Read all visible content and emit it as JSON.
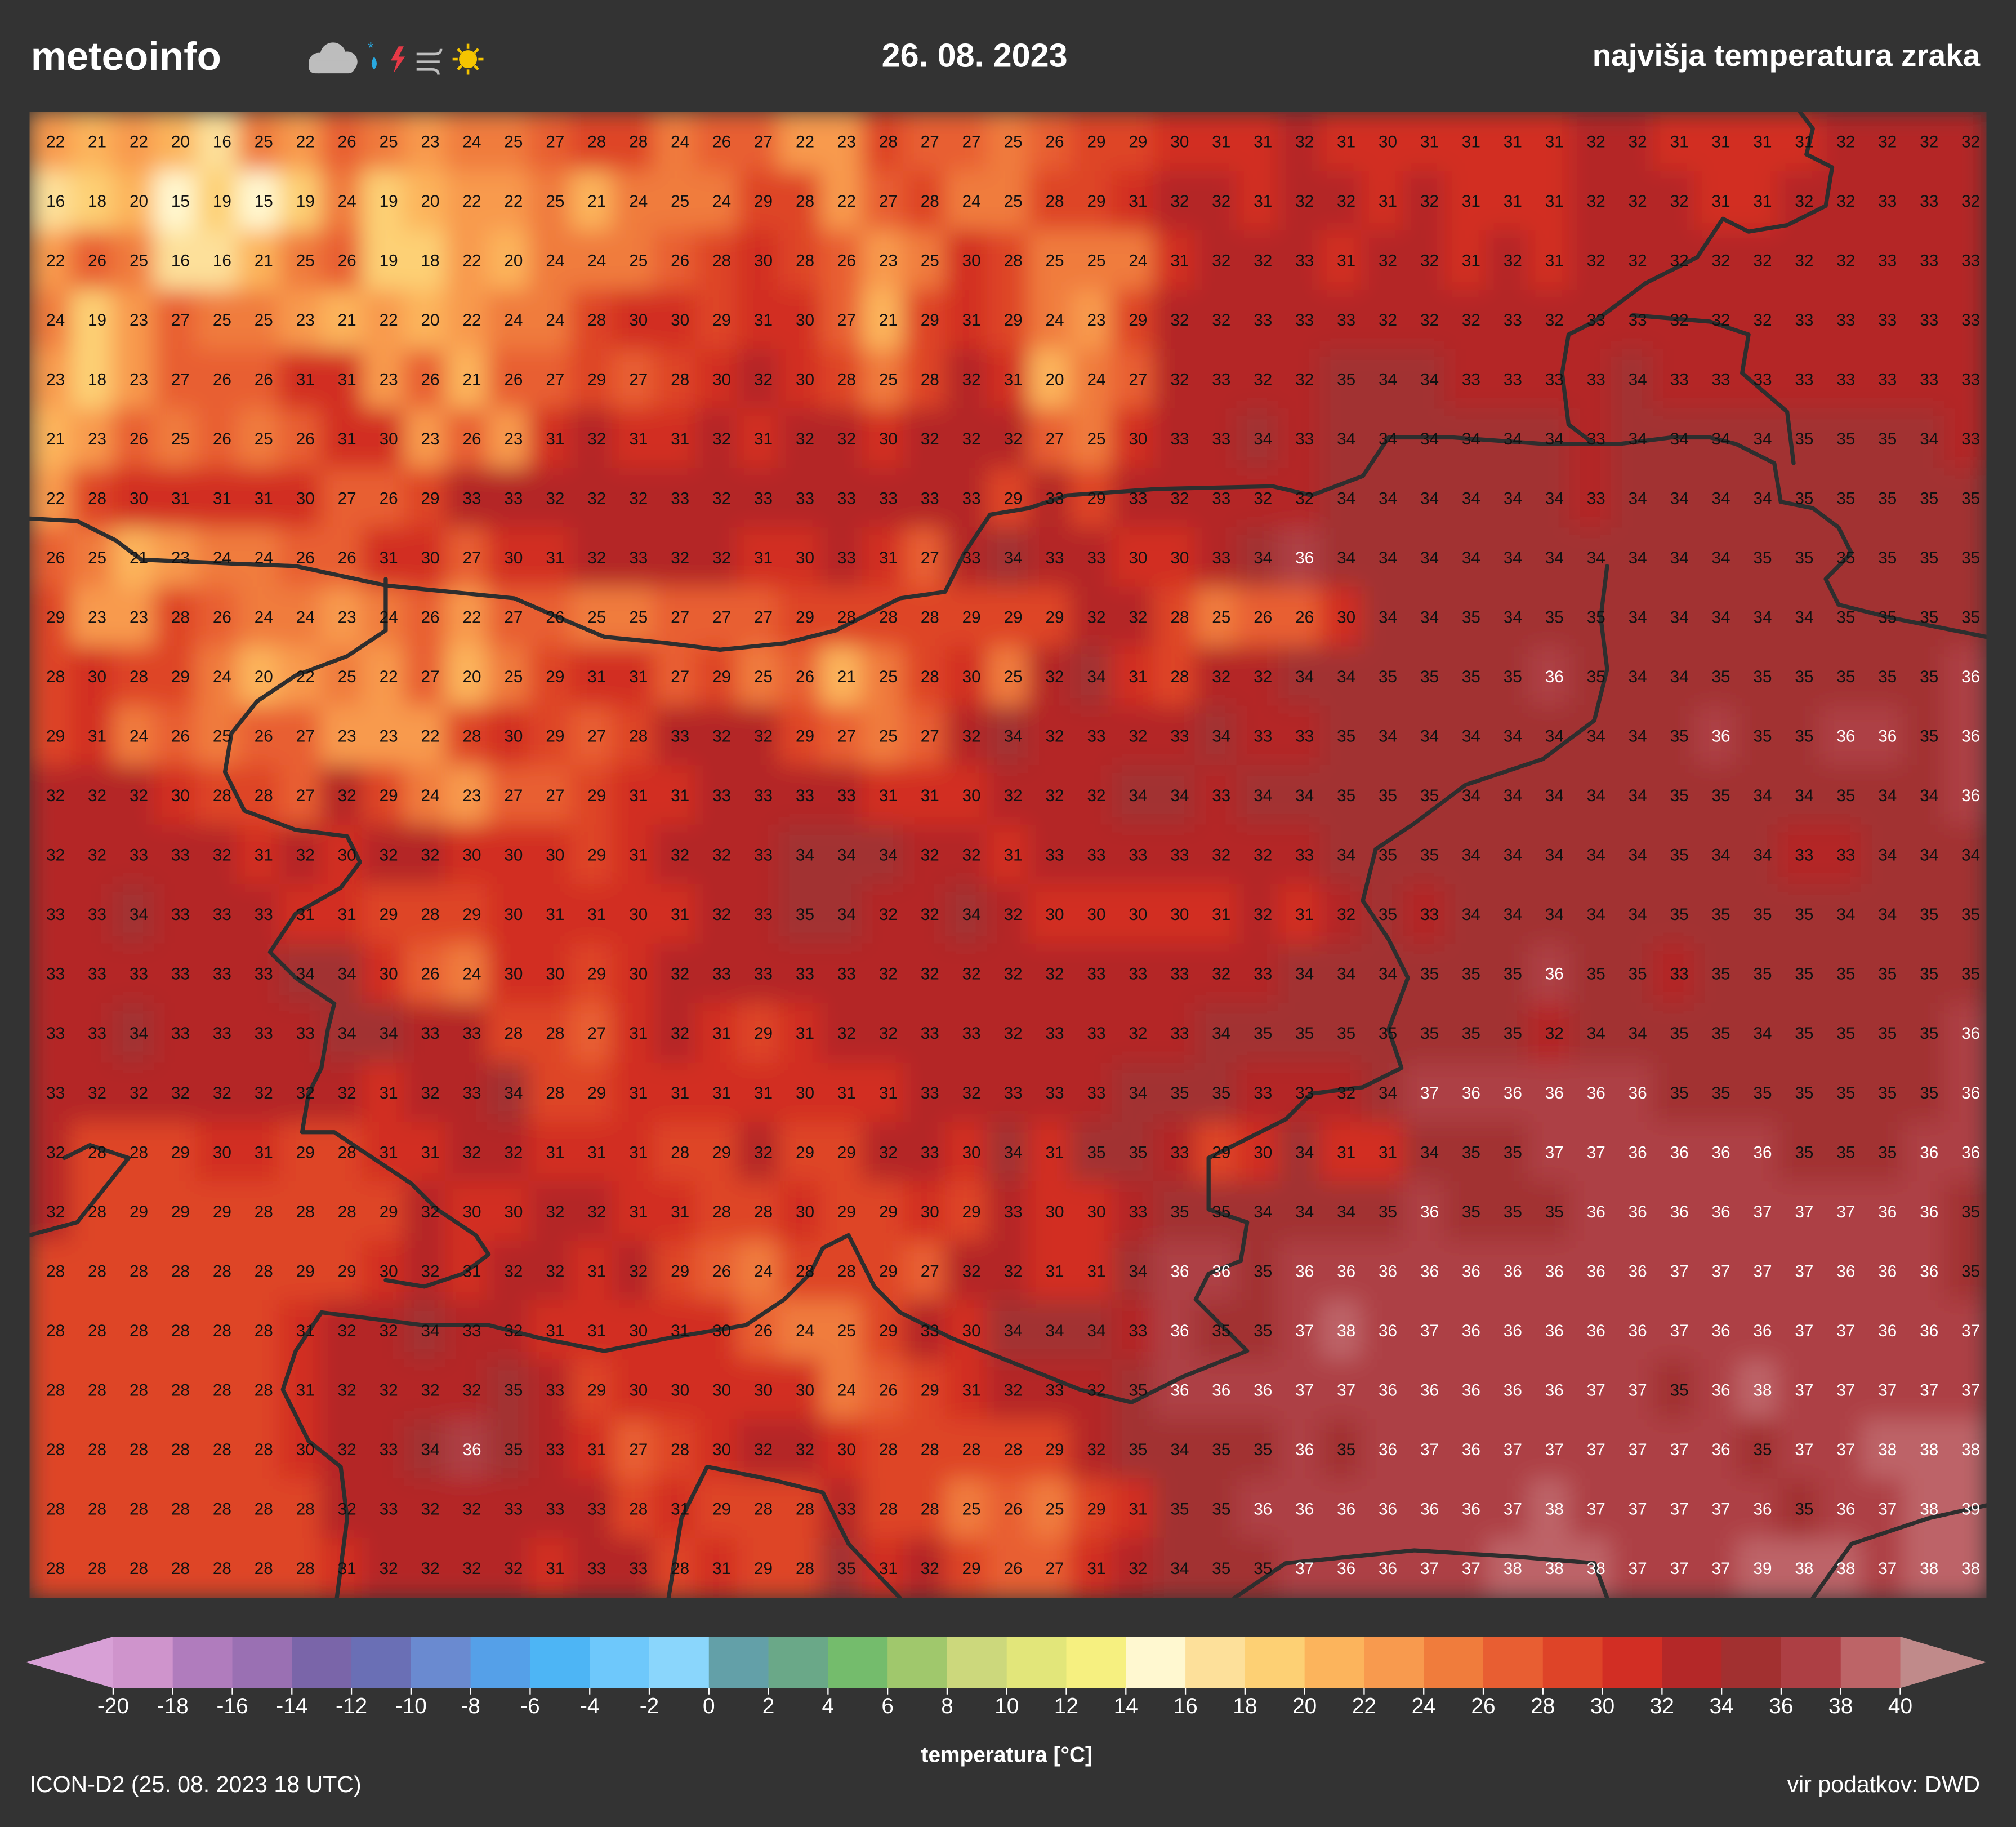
{
  "header": {
    "logo": "meteoinfo",
    "date": "26. 08. 2023",
    "title": "najvišja temperatura zraka"
  },
  "map": {
    "grid": [
      [
        22,
        21,
        22,
        20,
        16,
        25,
        22,
        26,
        25,
        23,
        24,
        25,
        27,
        28,
        28,
        24,
        26,
        27,
        22,
        23,
        28,
        27,
        27,
        25,
        26,
        29,
        29,
        30,
        31,
        31,
        32,
        31,
        30,
        31,
        31,
        31,
        31,
        32,
        32,
        31,
        31,
        31,
        31,
        32,
        32,
        32,
        32
      ],
      [
        16,
        18,
        20,
        15,
        19,
        15,
        19,
        24,
        19,
        20,
        22,
        22,
        25,
        21,
        24,
        25,
        24,
        29,
        28,
        22,
        27,
        28,
        24,
        25,
        28,
        29,
        31,
        32,
        32,
        31,
        32,
        32,
        31,
        32,
        31,
        31,
        31,
        32,
        32,
        32,
        31,
        31,
        32,
        32,
        33,
        33,
        32
      ],
      [
        22,
        26,
        25,
        16,
        16,
        21,
        25,
        26,
        19,
        18,
        22,
        20,
        24,
        24,
        25,
        26,
        28,
        30,
        28,
        26,
        23,
        25,
        30,
        28,
        25,
        25,
        24,
        31,
        32,
        32,
        33,
        31,
        32,
        32,
        31,
        32,
        31,
        32,
        32,
        32,
        32,
        32,
        32,
        32,
        33,
        33,
        33
      ],
      [
        24,
        19,
        23,
        27,
        25,
        25,
        23,
        21,
        22,
        20,
        22,
        24,
        24,
        28,
        30,
        30,
        29,
        31,
        30,
        27,
        21,
        29,
        31,
        29,
        24,
        23,
        29,
        32,
        32,
        33,
        33,
        33,
        32,
        32,
        32,
        33,
        32,
        33,
        33,
        32,
        32,
        32,
        33,
        33,
        33,
        33,
        33
      ],
      [
        23,
        18,
        23,
        27,
        26,
        26,
        31,
        31,
        23,
        26,
        21,
        26,
        27,
        29,
        27,
        28,
        30,
        32,
        30,
        28,
        25,
        28,
        32,
        31,
        20,
        24,
        27,
        32,
        33,
        32,
        32,
        35,
        34,
        34,
        33,
        33,
        33,
        33,
        34,
        33,
        33,
        33,
        33,
        33,
        33,
        33,
        33
      ],
      [
        21,
        23,
        26,
        25,
        26,
        25,
        26,
        31,
        30,
        23,
        26,
        23,
        31,
        32,
        31,
        31,
        32,
        31,
        32,
        32,
        30,
        32,
        32,
        32,
        27,
        25,
        30,
        33,
        33,
        34,
        33,
        34,
        34,
        34,
        34,
        34,
        34,
        33,
        34,
        34,
        34,
        34,
        35,
        35,
        35,
        34,
        33
      ],
      [
        22,
        28,
        30,
        31,
        31,
        31,
        30,
        27,
        26,
        29,
        33,
        33,
        32,
        32,
        32,
        33,
        32,
        33,
        33,
        33,
        33,
        33,
        33,
        29,
        33,
        29,
        33,
        32,
        33,
        32,
        32,
        34,
        34,
        34,
        34,
        34,
        34,
        33,
        34,
        34,
        34,
        34,
        35,
        35,
        35,
        35,
        35
      ],
      [
        26,
        25,
        21,
        23,
        24,
        24,
        26,
        26,
        31,
        30,
        27,
        30,
        31,
        32,
        33,
        32,
        32,
        31,
        30,
        33,
        31,
        27,
        33,
        34,
        33,
        33,
        30,
        30,
        33,
        34,
        36,
        34,
        34,
        34,
        34,
        34,
        34,
        34,
        34,
        34,
        34,
        35,
        35,
        35,
        35,
        35,
        35
      ],
      [
        29,
        23,
        23,
        28,
        26,
        24,
        24,
        23,
        24,
        26,
        22,
        27,
        26,
        25,
        25,
        27,
        27,
        27,
        29,
        28,
        28,
        28,
        29,
        29,
        29,
        32,
        32,
        28,
        25,
        26,
        26,
        30,
        34,
        34,
        35,
        34,
        35,
        35,
        34,
        34,
        34,
        34,
        34,
        35,
        35,
        35,
        35
      ],
      [
        28,
        30,
        28,
        29,
        24,
        20,
        22,
        25,
        22,
        27,
        20,
        25,
        29,
        31,
        31,
        27,
        29,
        25,
        26,
        21,
        25,
        28,
        30,
        25,
        32,
        34,
        31,
        28,
        32,
        32,
        34,
        34,
        35,
        35,
        35,
        35,
        36,
        35,
        34,
        34,
        35,
        35,
        35,
        35,
        35,
        35,
        36
      ],
      [
        29,
        31,
        24,
        26,
        25,
        26,
        27,
        23,
        23,
        22,
        28,
        30,
        29,
        27,
        28,
        33,
        32,
        32,
        29,
        27,
        25,
        27,
        32,
        34,
        32,
        33,
        32,
        33,
        34,
        33,
        33,
        35,
        34,
        34,
        34,
        34,
        34,
        34,
        34,
        35,
        36,
        35,
        35,
        36,
        36,
        35,
        36
      ],
      [
        32,
        32,
        32,
        30,
        28,
        28,
        27,
        32,
        29,
        24,
        23,
        27,
        27,
        29,
        31,
        31,
        33,
        33,
        33,
        33,
        31,
        31,
        30,
        32,
        32,
        32,
        34,
        34,
        33,
        34,
        34,
        35,
        35,
        35,
        34,
        34,
        34,
        34,
        34,
        35,
        35,
        34,
        34,
        35,
        34,
        34,
        36
      ],
      [
        32,
        32,
        33,
        33,
        32,
        31,
        32,
        30,
        32,
        32,
        30,
        30,
        30,
        29,
        31,
        32,
        32,
        33,
        34,
        34,
        34,
        32,
        32,
        31,
        33,
        33,
        33,
        33,
        32,
        32,
        33,
        34,
        35,
        35,
        34,
        34,
        34,
        34,
        34,
        35,
        34,
        34,
        33,
        33,
        34,
        34,
        34
      ],
      [
        33,
        33,
        34,
        33,
        33,
        33,
        31,
        31,
        29,
        28,
        29,
        30,
        31,
        31,
        30,
        31,
        32,
        33,
        35,
        34,
        32,
        32,
        34,
        32,
        30,
        30,
        30,
        30,
        31,
        32,
        31,
        32,
        35,
        33,
        34,
        34,
        34,
        34,
        34,
        35,
        35,
        35,
        35,
        34,
        34,
        35,
        35
      ],
      [
        33,
        33,
        33,
        33,
        33,
        33,
        34,
        34,
        30,
        26,
        24,
        30,
        30,
        29,
        30,
        32,
        33,
        33,
        33,
        33,
        32,
        32,
        32,
        32,
        32,
        33,
        33,
        33,
        32,
        33,
        34,
        34,
        34,
        35,
        35,
        35,
        36,
        35,
        35,
        33,
        35,
        35,
        35,
        35,
        35,
        35,
        35
      ],
      [
        33,
        33,
        34,
        33,
        33,
        33,
        33,
        34,
        34,
        33,
        33,
        28,
        28,
        27,
        31,
        32,
        31,
        29,
        31,
        32,
        32,
        33,
        33,
        32,
        33,
        33,
        32,
        33,
        34,
        35,
        35,
        35,
        35,
        35,
        35,
        35,
        32,
        34,
        34,
        35,
        35,
        34,
        35,
        35,
        35,
        35,
        36
      ],
      [
        33,
        32,
        32,
        32,
        32,
        32,
        32,
        32,
        31,
        32,
        33,
        34,
        28,
        29,
        31,
        31,
        31,
        31,
        30,
        31,
        31,
        33,
        32,
        33,
        33,
        33,
        34,
        35,
        35,
        33,
        33,
        32,
        34,
        37,
        36,
        36,
        36,
        36,
        36,
        35,
        35,
        35,
        35,
        35,
        35,
        35,
        36
      ],
      [
        32,
        28,
        28,
        29,
        30,
        31,
        29,
        28,
        31,
        31,
        32,
        32,
        31,
        31,
        31,
        28,
        29,
        32,
        29,
        29,
        32,
        33,
        30,
        34,
        31,
        35,
        35,
        33,
        29,
        30,
        34,
        31,
        31,
        34,
        35,
        35,
        37,
        37,
        36,
        36,
        36,
        36,
        35,
        35,
        35,
        36,
        36
      ],
      [
        32,
        28,
        29,
        29,
        29,
        28,
        28,
        28,
        29,
        32,
        30,
        30,
        32,
        32,
        31,
        31,
        28,
        28,
        30,
        29,
        29,
        30,
        29,
        33,
        30,
        30,
        33,
        35,
        35,
        34,
        34,
        34,
        35,
        36,
        35,
        35,
        35,
        36,
        36,
        36,
        36,
        37,
        37,
        37,
        36,
        36,
        35
      ],
      [
        28,
        28,
        28,
        28,
        28,
        28,
        29,
        29,
        30,
        32,
        31,
        32,
        32,
        31,
        32,
        29,
        26,
        24,
        28,
        28,
        29,
        27,
        32,
        32,
        31,
        31,
        34,
        36,
        36,
        35,
        36,
        36,
        36,
        36,
        36,
        36,
        36,
        36,
        36,
        37,
        37,
        37,
        37,
        36,
        36,
        36,
        35
      ],
      [
        28,
        28,
        28,
        28,
        28,
        28,
        31,
        32,
        32,
        34,
        33,
        32,
        31,
        31,
        30,
        31,
        30,
        26,
        24,
        25,
        29,
        33,
        30,
        34,
        34,
        34,
        33,
        36,
        35,
        35,
        37,
        38,
        36,
        37,
        36,
        36,
        36,
        36,
        36,
        37,
        36,
        36,
        37,
        37,
        36,
        36,
        37
      ],
      [
        28,
        28,
        28,
        28,
        28,
        28,
        31,
        32,
        32,
        32,
        32,
        35,
        33,
        29,
        30,
        30,
        30,
        30,
        30,
        24,
        26,
        29,
        31,
        32,
        33,
        32,
        35,
        36,
        36,
        36,
        37,
        37,
        36,
        36,
        36,
        36,
        36,
        37,
        37,
        35,
        36,
        38,
        37,
        37,
        37,
        37,
        37
      ],
      [
        28,
        28,
        28,
        28,
        28,
        28,
        30,
        32,
        33,
        34,
        36,
        35,
        33,
        31,
        27,
        28,
        30,
        32,
        32,
        30,
        28,
        28,
        28,
        28,
        29,
        32,
        35,
        34,
        35,
        35,
        36,
        35,
        36,
        37,
        36,
        37,
        37,
        37,
        37,
        37,
        36,
        35,
        37,
        37,
        38,
        38,
        38
      ],
      [
        28,
        28,
        28,
        28,
        28,
        28,
        28,
        32,
        33,
        32,
        32,
        33,
        33,
        33,
        28,
        31,
        29,
        28,
        28,
        33,
        28,
        28,
        25,
        26,
        25,
        29,
        31,
        35,
        35,
        36,
        36,
        36,
        36,
        36,
        36,
        37,
        38,
        37,
        37,
        37,
        37,
        36,
        35,
        36,
        37,
        38,
        39
      ],
      [
        28,
        28,
        28,
        28,
        28,
        28,
        28,
        31,
        32,
        32,
        32,
        32,
        31,
        33,
        33,
        28,
        31,
        29,
        28,
        35,
        31,
        32,
        29,
        26,
        27,
        31,
        32,
        34,
        35,
        35,
        37,
        36,
        36,
        37,
        37,
        38,
        38,
        38,
        37,
        37,
        37,
        39,
        38,
        38,
        37,
        38,
        38
      ]
    ]
  },
  "colorbar": {
    "label": "temperatura [°C]",
    "ticks": [
      -20,
      -18,
      -16,
      -14,
      -12,
      -10,
      -8,
      -6,
      -4,
      -2,
      0,
      2,
      4,
      6,
      8,
      10,
      12,
      14,
      16,
      18,
      20,
      22,
      24,
      26,
      28,
      30,
      32,
      34,
      36,
      38,
      40
    ],
    "colors": [
      "#cf94cc",
      "#b07cbd",
      "#9a70b3",
      "#7a65a9",
      "#6a6fb5",
      "#6a8ad0",
      "#55a0e8",
      "#4db5f5",
      "#6ec8fb",
      "#8ad6fc",
      "#63a0a8",
      "#6aa888",
      "#74bc6c",
      "#a0c86c",
      "#ccd87c",
      "#e2e67a",
      "#f6f080",
      "#fff8d0",
      "#fde09a",
      "#fdd074",
      "#fcb45c",
      "#f89a4e",
      "#f07c3c",
      "#e85e32",
      "#de4428",
      "#d22e24",
      "#b42828",
      "#a23030",
      "#ad3f44",
      "#bd6467"
    ],
    "under_color": "#d8a0d6",
    "over_color": "#c08a8a"
  },
  "footer": {
    "model": "ICON-D2 (25. 08. 2023 18 UTC)",
    "source": "vir podatkov: DWD"
  }
}
